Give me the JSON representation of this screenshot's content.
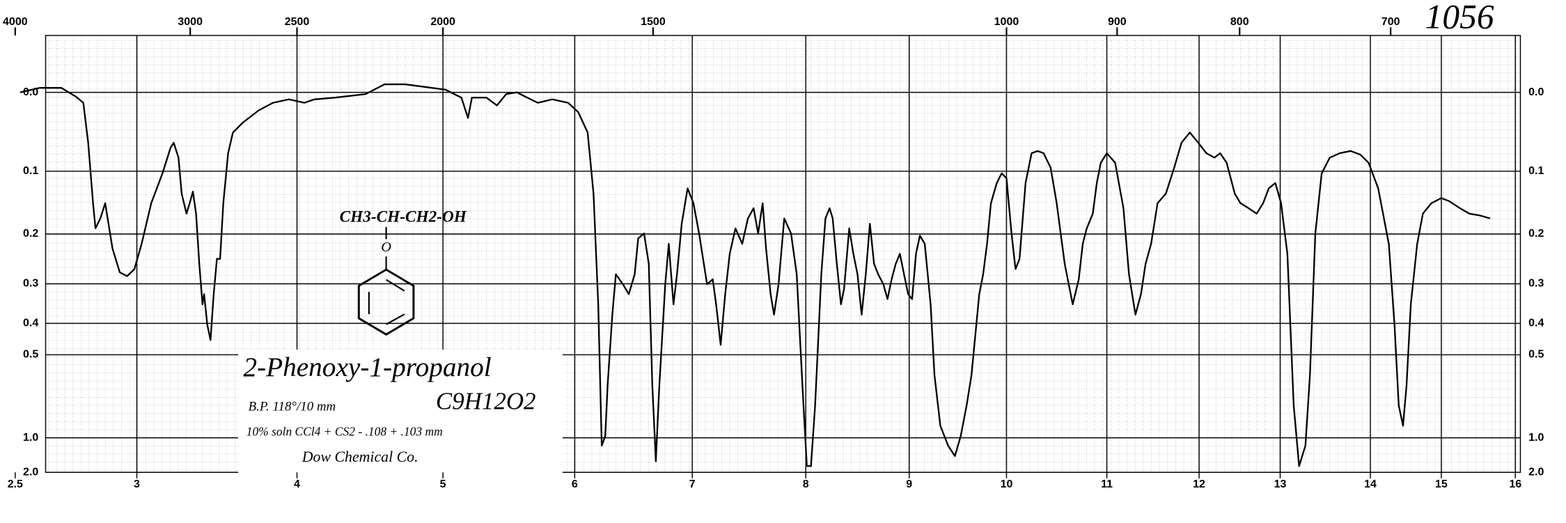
{
  "chart_data": {
    "type": "line",
    "annotations": [
      "1056",
      "CH3-CH-CH2-OH",
      "O",
      "2-Phenoxy-1-propanol",
      "C9H12O2",
      "B.P. 118°/10 mm",
      "10% soln CCl4 + CS2 - .108 + .103 mm",
      "Dow Chemical Co."
    ],
    "x": [
      2.52,
      2.6,
      2.69,
      2.75,
      2.78,
      2.8,
      2.82,
      2.83,
      2.85,
      2.87,
      2.88,
      2.9,
      2.93,
      2.96,
      2.99,
      3.03,
      3.09,
      3.16,
      3.21,
      3.23,
      3.26,
      3.28,
      3.31,
      3.33,
      3.35,
      3.37,
      3.39,
      3.41,
      3.42,
      3.44,
      3.46,
      3.48,
      3.5,
      3.52,
      3.54,
      3.57,
      3.6,
      3.66,
      3.76,
      3.85,
      3.95,
      4.05,
      4.12,
      4.26,
      4.47,
      4.6,
      4.74,
      4.88,
      5.02,
      5.14,
      5.19,
      5.22,
      5.33,
      5.41,
      5.48,
      5.56,
      5.64,
      5.72,
      5.83,
      5.95,
      6.03,
      6.11,
      6.16,
      6.2,
      6.23,
      6.26,
      6.28,
      6.32,
      6.35,
      6.41,
      6.46,
      6.51,
      6.54,
      6.59,
      6.63,
      6.66,
      6.69,
      6.72,
      6.77,
      6.8,
      6.84,
      6.87,
      6.91,
      6.96,
      7.01,
      7.06,
      7.13,
      7.18,
      7.21,
      7.25,
      7.29,
      7.33,
      7.38,
      7.44,
      7.49,
      7.54,
      7.58,
      7.62,
      7.65,
      7.69,
      7.72,
      7.76,
      7.81,
      7.87,
      7.92,
      7.97,
      8.01,
      8.05,
      8.09,
      8.15,
      8.19,
      8.23,
      8.26,
      8.3,
      8.34,
      8.37,
      8.42,
      8.46,
      8.5,
      8.54,
      8.58,
      8.62,
      8.66,
      8.7,
      8.75,
      8.79,
      8.83,
      8.87,
      8.91,
      8.95,
      8.99,
      9.03,
      9.07,
      9.11,
      9.16,
      9.22,
      9.26,
      9.32,
      9.4,
      9.47,
      9.53,
      9.59,
      9.64,
      9.68,
      9.72,
      9.76,
      9.8,
      9.84,
      9.9,
      9.95,
      10.0,
      10.05,
      10.09,
      10.13,
      10.19,
      10.25,
      10.31,
      10.37,
      10.44,
      10.5,
      10.58,
      10.66,
      10.72,
      10.76,
      10.8,
      10.86,
      10.9,
      10.94,
      11.0,
      11.09,
      11.18,
      11.24,
      11.31,
      11.37,
      11.42,
      11.48,
      11.55,
      11.64,
      11.73,
      11.81,
      11.9,
      11.99,
      12.09,
      12.19,
      12.26,
      12.34,
      12.44,
      12.51,
      12.61,
      12.71,
      12.79,
      12.86,
      12.94,
      13.01,
      13.08,
      13.15,
      13.21,
      13.28,
      13.33,
      13.39,
      13.46,
      13.55,
      13.66,
      13.78,
      13.89,
      13.98,
      14.11,
      14.26,
      14.34,
      14.4,
      14.46,
      14.51,
      14.57,
      14.66,
      14.74,
      14.86,
      15.0,
      15.11,
      15.25,
      15.38,
      15.52,
      15.66
    ],
    "values": [
      0,
      -0.005,
      -0.005,
      0.005,
      0.012,
      0.061,
      0.148,
      0.19,
      0.173,
      0.148,
      0.173,
      0.227,
      0.275,
      0.283,
      0.268,
      0.218,
      0.148,
      0.103,
      0.068,
      0.061,
      0.081,
      0.133,
      0.165,
      0.148,
      0.13,
      0.165,
      0.257,
      0.349,
      0.324,
      0.404,
      0.45,
      0.324,
      0.247,
      0.247,
      0.148,
      0.075,
      0.048,
      0.036,
      0.021,
      0.012,
      0.008,
      0.012,
      0.008,
      0.006,
      0.002,
      -0.009,
      -0.009,
      -0.006,
      -0.003,
      0.006,
      0.03,
      0.006,
      0.006,
      0.015,
      0.002,
      0,
      0.006,
      0.012,
      0.008,
      0.012,
      0.023,
      0.048,
      0.133,
      0.349,
      1.1,
      0.98,
      0.625,
      0.376,
      0.279,
      0.301,
      0.324,
      0.279,
      0.208,
      0.199,
      0.257,
      0.625,
      1.41,
      0.625,
      0.301,
      0.218,
      0.349,
      0.279,
      0.182,
      0.125,
      0.148,
      0.199,
      0.301,
      0.29,
      0.349,
      0.466,
      0.324,
      0.237,
      0.19,
      0.218,
      0.173,
      0.156,
      0.199,
      0.148,
      0.227,
      0.324,
      0.376,
      0.301,
      0.173,
      0.199,
      0.279,
      0.625,
      1.58,
      1.58,
      0.735,
      0.279,
      0.173,
      0.156,
      0.173,
      0.257,
      0.349,
      0.312,
      0.19,
      0.237,
      0.279,
      0.376,
      0.279,
      0.182,
      0.257,
      0.279,
      0.301,
      0.336,
      0.29,
      0.257,
      0.237,
      0.279,
      0.324,
      0.336,
      0.237,
      0.203,
      0.218,
      0.349,
      0.58,
      0.881,
      1.1,
      1.28,
      0.979,
      0.735,
      0.58,
      0.434,
      0.324,
      0.279,
      0.218,
      0.148,
      0.117,
      0.103,
      0.11,
      0.199,
      0.268,
      0.247,
      0.117,
      0.075,
      0.072,
      0.075,
      0.095,
      0.148,
      0.257,
      0.349,
      0.29,
      0.218,
      0.19,
      0.165,
      0.117,
      0.088,
      0.075,
      0.088,
      0.156,
      0.279,
      0.376,
      0.324,
      0.257,
      0.218,
      0.148,
      0.133,
      0.095,
      0.061,
      0.048,
      0.061,
      0.075,
      0.081,
      0.075,
      0.088,
      0.133,
      0.148,
      0.156,
      0.165,
      0.148,
      0.125,
      0.117,
      0.148,
      0.237,
      0.735,
      1.58,
      1.1,
      0.58,
      0.199,
      0.103,
      0.081,
      0.075,
      0.072,
      0.077,
      0.088,
      0.125,
      0.218,
      0.404,
      0.735,
      0.881,
      0.625,
      0.349,
      0.218,
      0.165,
      0.148,
      0.14,
      0.145,
      0.156,
      0.165,
      0.168,
      0.173
    ],
    "color": "#000000",
    "xlim": [
      2.5,
      16
    ],
    "xticks": [
      2.5,
      3,
      4,
      5,
      6,
      7,
      8,
      9,
      10,
      11,
      12,
      13,
      14,
      15,
      16
    ],
    "x2ticks": [
      4000,
      3000,
      2500,
      2000,
      1500,
      1000,
      900,
      800,
      700
    ],
    "ylim": [
      -0.06,
      2
    ],
    "yscale": "absorbance",
    "yticks": [
      {
        "value": 0,
        "label": "0.0"
      },
      0.1,
      0.2,
      0.3,
      0.4,
      0.5,
      {
        "value": 1,
        "label": "1.0"
      },
      {
        "value": 2,
        "label": "2.0"
      }
    ],
    "grid": true
  }
}
